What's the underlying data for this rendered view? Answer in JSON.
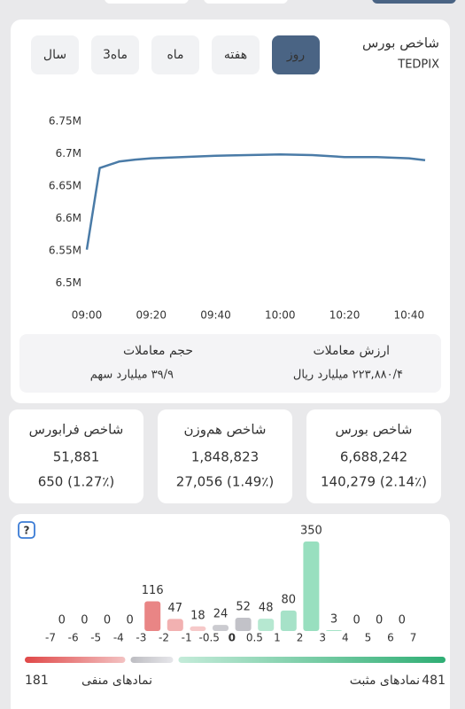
{
  "header": {
    "title": "شاخص بورس",
    "subtitle": "TEDPIX"
  },
  "tabs": [
    "روز",
    "هفته",
    "ماه",
    "3ماه",
    "سال"
  ],
  "active_tab": 0,
  "stats": [
    {
      "label": "ارزش معاملات",
      "value": "۲۲۳,۸۸۰/۴ میلیارد ریال"
    },
    {
      "label": "حجم معاملات",
      "value": "۳۹/۹ میلیارد سهم"
    }
  ],
  "index_cards": [
    {
      "title": "شاخص بورس",
      "value": "6,688,242",
      "change": "140,279 (2.14٪)"
    },
    {
      "title": "شاخص هم‌وزن",
      "value": "1,848,823",
      "change": "27,056 (1.49٪)"
    },
    {
      "title": "شاخص فرابورس",
      "value": "51,881",
      "change": "650 (1.27٪)"
    }
  ],
  "help": "?",
  "breadth": {
    "negative_label": "نمادهای منفی",
    "negative": 181,
    "negative_color": "#e04848",
    "positive_label": "نمادهای مثبت",
    "positive": 481,
    "positive_color": "#2fae74"
  },
  "chart_data": [
    {
      "type": "line",
      "color": "#4a7ba7",
      "x": [
        "09:00",
        "09:04",
        "09:10",
        "09:15",
        "09:20",
        "09:40",
        "10:00",
        "10:10",
        "10:20",
        "10:30",
        "10:40",
        "10:45"
      ],
      "values": [
        6552000,
        6678000,
        6688000,
        6691000,
        6693000,
        6697000,
        6699000,
        6698000,
        6695000,
        6695000,
        6693000,
        6690000
      ],
      "xlim": [
        "09:00",
        "10:45"
      ],
      "xticks": [
        "09:00",
        "09:20",
        "09:40",
        "10:00",
        "10:20",
        "10:40"
      ],
      "ylim": [
        6490000,
        6765000
      ],
      "yticks": [
        {
          "value": 6500000,
          "label": "6.5M"
        },
        {
          "value": 6550000,
          "label": "6.55M"
        },
        {
          "value": 6600000,
          "label": "6.6M"
        },
        {
          "value": 6650000,
          "label": "6.65M"
        },
        {
          "value": 6700000,
          "label": "6.7M"
        },
        {
          "value": 6750000,
          "label": "6.75M"
        }
      ]
    },
    {
      "type": "histogram",
      "bins": [
        -7,
        -6,
        -5,
        -4,
        -3,
        -2,
        -1,
        -0.5,
        0,
        0.5,
        1,
        2,
        3,
        4,
        5,
        6,
        7
      ],
      "values": [
        0,
        0,
        0,
        0,
        116,
        47,
        18,
        24,
        52,
        48,
        80,
        350,
        3,
        0,
        0,
        0
      ],
      "colors": [
        "#e98585",
        "#e98585",
        "#e98585",
        "#e98585",
        "#e98585",
        "#f2b1b1",
        "#f6c9c9",
        "#cbcbd0",
        "#c2c2c8",
        "#b6e8d1",
        "#a6e2c8",
        "#98dfbf",
        "#98dfbf",
        "#98dfbf",
        "#98dfbf",
        "#98dfbf"
      ]
    }
  ]
}
